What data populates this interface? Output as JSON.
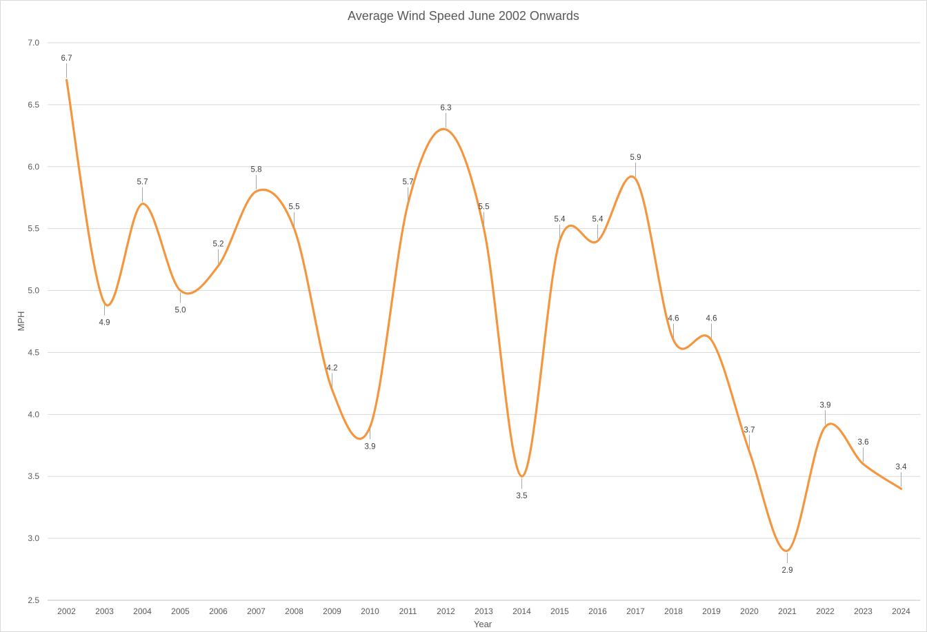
{
  "chart_data": {
    "type": "line",
    "title": "Average Wind Speed June 2002 Onwards",
    "xlabel": "Year",
    "ylabel": "MPH",
    "ylim": [
      2.5,
      7.0
    ],
    "yticks": [
      "2.5",
      "3.0",
      "3.5",
      "4.0",
      "4.5",
      "5.0",
      "5.5",
      "6.0",
      "6.5",
      "7.0"
    ],
    "grid": true,
    "smoothed": true,
    "line_color": "#F4963F",
    "categories": [
      "2002",
      "2003",
      "2004",
      "2005",
      "2006",
      "2007",
      "2008",
      "2009",
      "2010",
      "2011",
      "2012",
      "2013",
      "2014",
      "2015",
      "2016",
      "2017",
      "2018",
      "2019",
      "2020",
      "2021",
      "2022",
      "2023",
      "2024"
    ],
    "values": [
      6.7,
      4.9,
      5.7,
      5.0,
      5.2,
      5.8,
      5.5,
      4.2,
      3.9,
      5.7,
      6.3,
      5.5,
      3.5,
      5.4,
      5.4,
      5.9,
      4.6,
      4.6,
      3.7,
      2.9,
      3.9,
      3.6,
      3.4
    ],
    "data_labels": [
      "6.7",
      "4.9",
      "5.7",
      "5.0",
      "5.2",
      "5.8",
      "5.5",
      "4.2",
      "3.9",
      "5.7",
      "6.3",
      "5.5",
      "3.5",
      "5.4",
      "5.4",
      "5.9",
      "4.6",
      "4.6",
      "3.7",
      "2.9",
      "3.9",
      "3.6",
      "3.4"
    ]
  }
}
